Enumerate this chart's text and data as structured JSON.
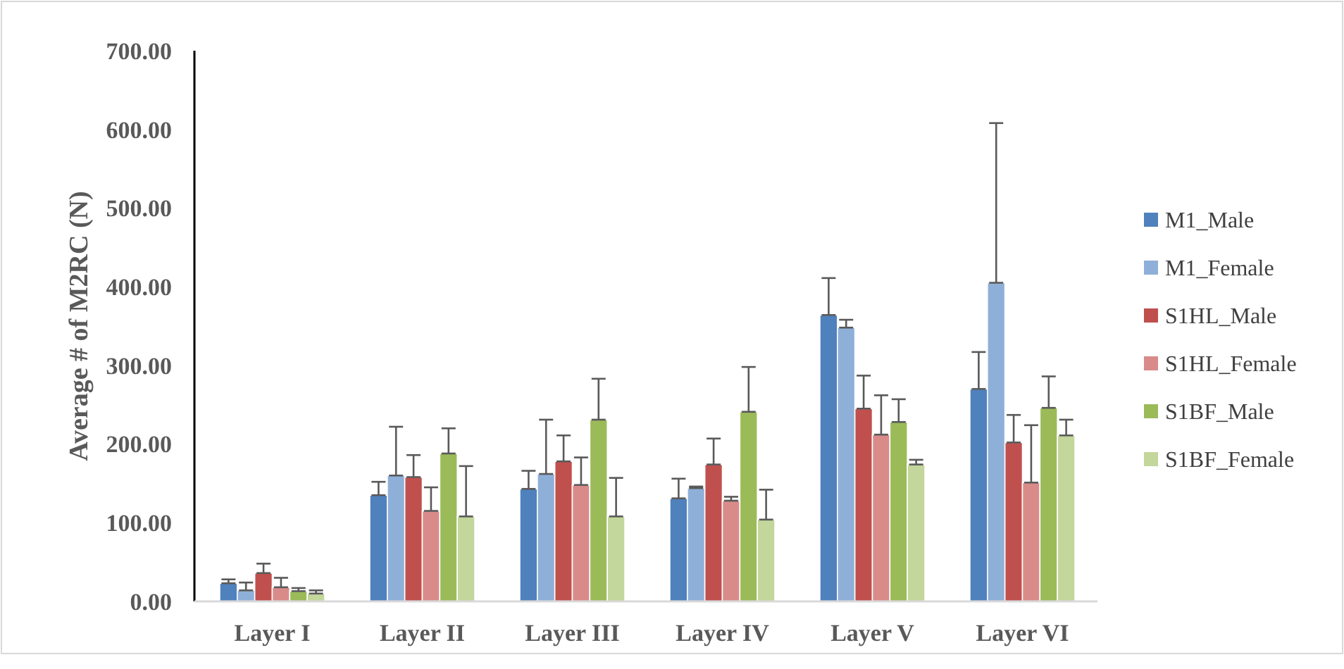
{
  "chart_data": {
    "type": "bar",
    "ylabel": "Average # of M2RC (N)",
    "categories": [
      "Layer I",
      "Layer II",
      "Layer III",
      "Layer IV",
      "Layer V",
      "Layer VI"
    ],
    "ylim": [
      0,
      700
    ],
    "yticks": [
      {
        "value": 0,
        "label": "0.00"
      },
      {
        "value": 100,
        "label": "100.00"
      },
      {
        "value": 200,
        "label": "200.00"
      },
      {
        "value": 300,
        "label": "300.00"
      },
      {
        "value": 400,
        "label": "400.00"
      },
      {
        "value": 500,
        "label": "500.00"
      },
      {
        "value": 600,
        "label": "600.00"
      },
      {
        "value": 700,
        "label": "700.00"
      }
    ],
    "grid": false,
    "legend": "right",
    "series": [
      {
        "name": "M1_Male",
        "color": "#4f81bd",
        "values": [
          23,
          135,
          143,
          131,
          364,
          270
        ],
        "errors": [
          [
            23,
            28
          ],
          [
            135,
            152
          ],
          [
            143,
            166
          ],
          [
            131,
            156
          ],
          [
            364,
            411
          ],
          [
            270,
            317
          ]
        ]
      },
      {
        "name": "M1_Female",
        "color": "#8eb0d8",
        "values": [
          14,
          160,
          162,
          144,
          348,
          405
        ],
        "errors": [
          [
            14,
            24
          ],
          [
            160,
            222
          ],
          [
            162,
            231
          ],
          [
            144,
            146
          ],
          [
            348,
            358
          ],
          [
            405,
            608
          ]
        ]
      },
      {
        "name": "S1HL_Male",
        "color": "#c0504d",
        "values": [
          36,
          158,
          178,
          174,
          245,
          202
        ],
        "errors": [
          [
            36,
            48
          ],
          [
            158,
            186
          ],
          [
            178,
            211
          ],
          [
            174,
            207
          ],
          [
            245,
            287
          ],
          [
            202,
            237
          ]
        ]
      },
      {
        "name": "S1HL_Female",
        "color": "#d98b8a",
        "values": [
          18,
          115,
          148,
          128,
          212,
          151
        ],
        "errors": [
          [
            18,
            30
          ],
          [
            115,
            145
          ],
          [
            148,
            183
          ],
          [
            128,
            133
          ],
          [
            212,
            262
          ],
          [
            151,
            224
          ]
        ]
      },
      {
        "name": "S1BF_Male",
        "color": "#9bbb59",
        "values": [
          13,
          188,
          231,
          241,
          228,
          246
        ],
        "errors": [
          [
            13,
            17
          ],
          [
            188,
            220
          ],
          [
            231,
            283
          ],
          [
            241,
            298
          ],
          [
            228,
            257
          ],
          [
            246,
            286
          ]
        ]
      },
      {
        "name": "S1BF_Female",
        "color": "#c3d69b",
        "values": [
          10,
          108,
          108,
          104,
          174,
          211
        ],
        "errors": [
          [
            10,
            14
          ],
          [
            108,
            172
          ],
          [
            108,
            157
          ],
          [
            104,
            142
          ],
          [
            174,
            180
          ],
          [
            211,
            231
          ]
        ]
      }
    ]
  }
}
